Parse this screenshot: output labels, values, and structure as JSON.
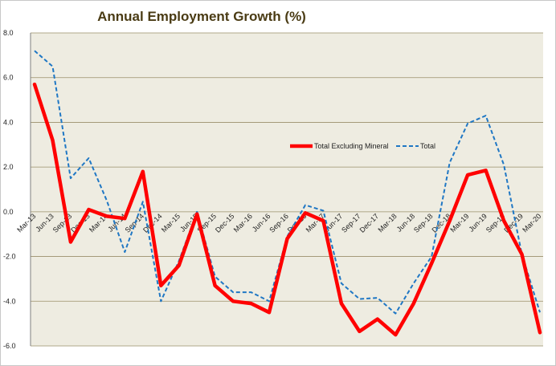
{
  "chart_data": {
    "type": "line",
    "title": "Annual Employment Growth (%)",
    "xlabel": "",
    "ylabel": "",
    "ylim": [
      -6.0,
      8.0
    ],
    "yticks": [
      8.0,
      6.0,
      4.0,
      2.0,
      0.0,
      -2.0,
      -4.0,
      -6.0
    ],
    "ytick_labels": [
      "8.0",
      "6.0",
      "4.0",
      "2.0",
      "0.0",
      "-2.0",
      "-4.0",
      "-6.0"
    ],
    "grid": true,
    "legend_position": "center-right",
    "categories": [
      "Mar-13",
      "Jun-13",
      "Sep-13",
      "Dec-13",
      "Mar-14",
      "Jun-14",
      "Sep-14",
      "Dec-14",
      "Mar-15",
      "Jun-15",
      "Sep-15",
      "Dec-15",
      "Mar-16",
      "Jun-16",
      "Sep-16",
      "Dec-16",
      "Mar-17",
      "Jun-17",
      "Sep-17",
      "Dec-17",
      "Mar-18",
      "Jun-18",
      "Sep-18",
      "Dec-18",
      "Mar-19",
      "Jun-19",
      "Sep-19",
      "Dec-19",
      "Mar-20"
    ],
    "series": [
      {
        "name": "Total Excluding Mineral",
        "color": "#ff0000",
        "style": "solid",
        "values": [
          5.7,
          3.2,
          -1.35,
          0.1,
          -0.2,
          -0.3,
          1.8,
          -3.3,
          -2.4,
          -0.1,
          -3.3,
          -4.0,
          -4.1,
          -4.5,
          -1.2,
          -0.05,
          -0.4,
          -4.1,
          -5.35,
          -4.8,
          -5.5,
          -4.1,
          -2.3,
          -0.4,
          1.65,
          1.85,
          -0.4,
          -1.9,
          -5.4
        ]
      },
      {
        "name": "Total",
        "color": "#1f77c4",
        "style": "dashed",
        "values": [
          7.2,
          6.5,
          1.5,
          2.4,
          0.5,
          -1.8,
          0.45,
          -4.0,
          -2.2,
          0.0,
          -2.9,
          -3.6,
          -3.6,
          -4.0,
          -1.1,
          0.3,
          0.05,
          -3.2,
          -3.9,
          -3.85,
          -4.55,
          -3.2,
          -2.0,
          2.2,
          3.95,
          4.3,
          2.1,
          -1.9,
          -4.5
        ]
      }
    ]
  }
}
